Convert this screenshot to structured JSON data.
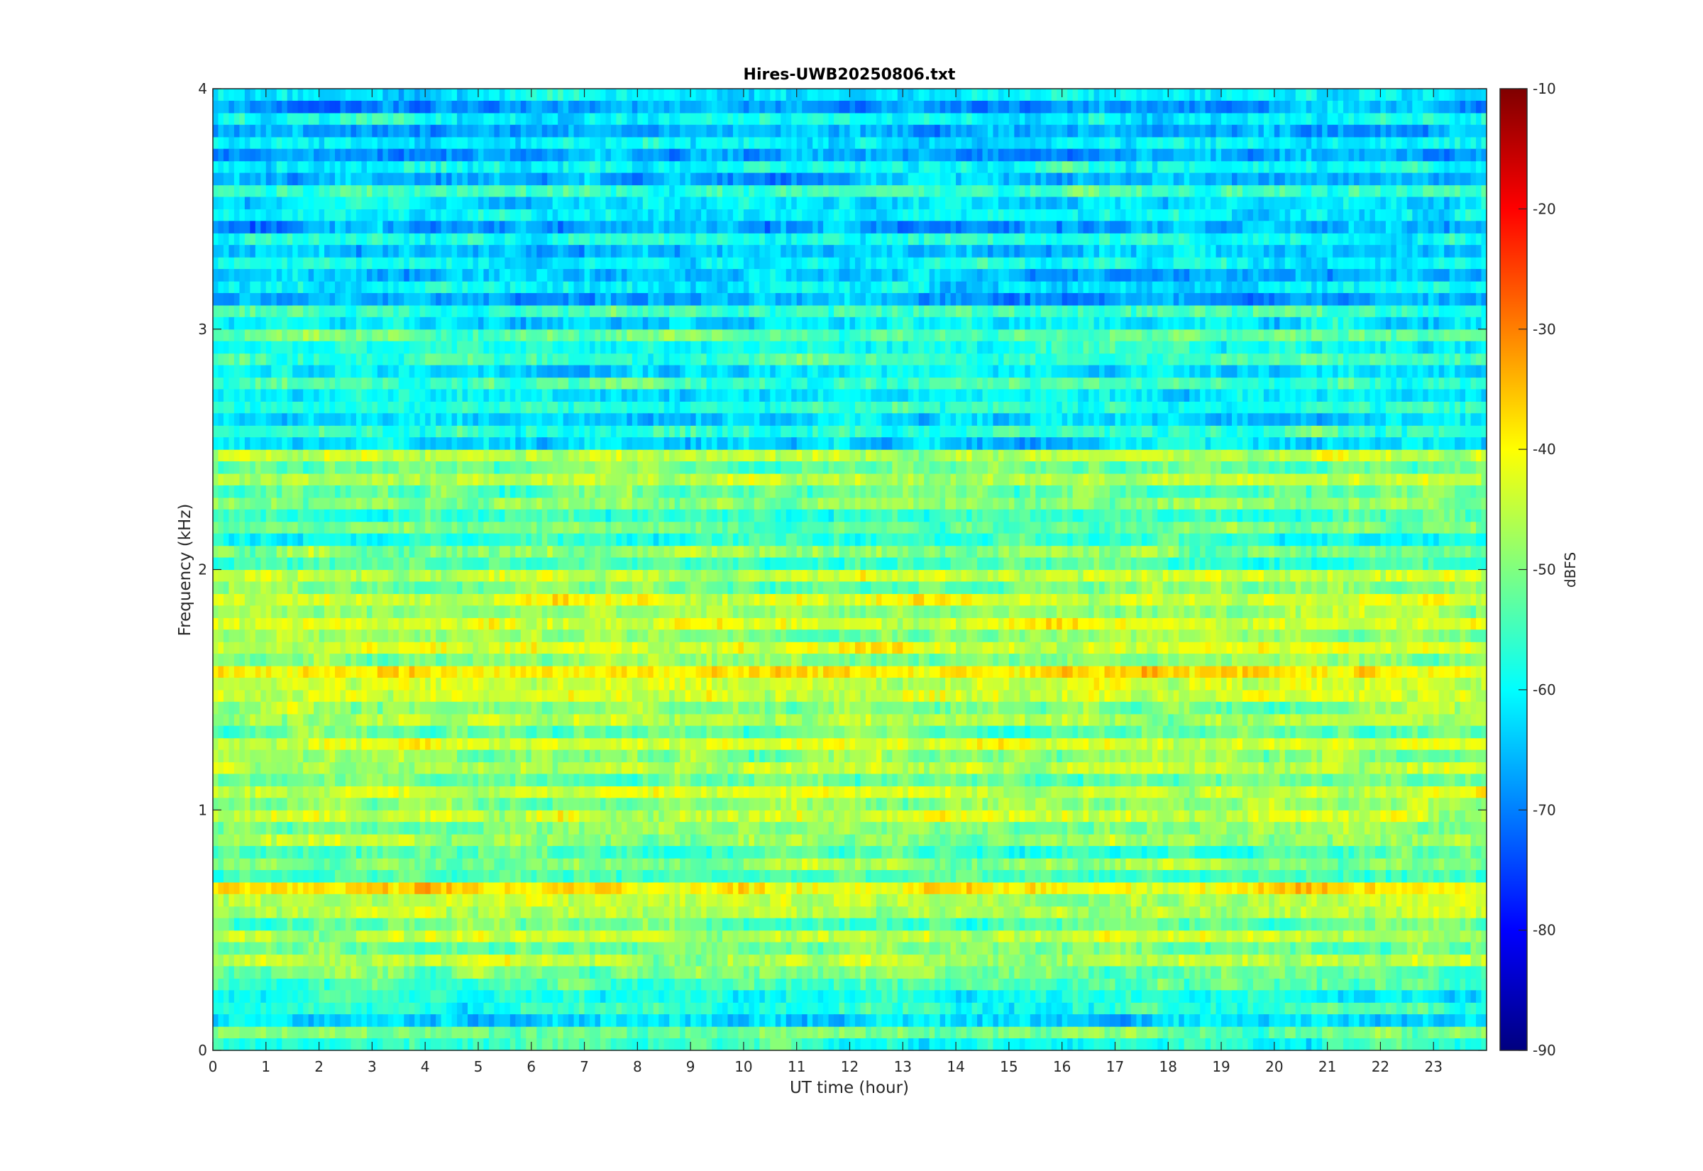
{
  "chart_data": {
    "type": "heatmap",
    "title": "Hires-UWB20250806.txt",
    "xlabel": "UT time (hour)",
    "ylabel": "Frequency (kHz)",
    "xlim": [
      0,
      24
    ],
    "ylim": [
      0,
      4
    ],
    "x_ticks": [
      "0",
      "1",
      "2",
      "3",
      "4",
      "5",
      "6",
      "7",
      "8",
      "9",
      "10",
      "11",
      "12",
      "13",
      "14",
      "15",
      "16",
      "17",
      "18",
      "19",
      "20",
      "21",
      "22",
      "23"
    ],
    "y_ticks": [
      "0",
      "1",
      "2",
      "3",
      "4"
    ],
    "colorbar": {
      "label": "dBFS",
      "range": [
        -90,
        -10
      ],
      "ticks": [
        "-10",
        "-20",
        "-30",
        "-40",
        "-50",
        "-60",
        "-70",
        "-80",
        "-90"
      ],
      "colormap": "jet"
    },
    "bands": [
      {
        "f": 0.05,
        "level": -52
      },
      {
        "f": 0.15,
        "level": -58
      },
      {
        "f": 0.25,
        "level": -55
      },
      {
        "f": 0.35,
        "level": -46
      },
      {
        "f": 0.45,
        "level": -46
      },
      {
        "f": 0.55,
        "level": -47
      },
      {
        "f": 0.65,
        "level": -40
      },
      {
        "f": 0.75,
        "level": -50
      },
      {
        "f": 0.85,
        "level": -49
      },
      {
        "f": 0.95,
        "level": -45
      },
      {
        "f": 1.05,
        "level": -44
      },
      {
        "f": 1.15,
        "level": -46
      },
      {
        "f": 1.25,
        "level": -44
      },
      {
        "f": 1.35,
        "level": -48
      },
      {
        "f": 1.45,
        "level": -44
      },
      {
        "f": 1.55,
        "level": -39
      },
      {
        "f": 1.65,
        "level": -44
      },
      {
        "f": 1.75,
        "level": -43
      },
      {
        "f": 1.85,
        "level": -44
      },
      {
        "f": 1.95,
        "level": -45
      },
      {
        "f": 2.05,
        "level": -50
      },
      {
        "f": 2.15,
        "level": -52
      },
      {
        "f": 2.25,
        "level": -50
      },
      {
        "f": 2.35,
        "level": -47
      },
      {
        "f": 2.45,
        "level": -47
      },
      {
        "f": 2.55,
        "level": -57
      },
      {
        "f": 2.65,
        "level": -58
      },
      {
        "f": 2.75,
        "level": -56
      },
      {
        "f": 2.85,
        "level": -56
      },
      {
        "f": 2.95,
        "level": -54
      },
      {
        "f": 3.05,
        "level": -56
      },
      {
        "f": 3.15,
        "level": -62
      },
      {
        "f": 3.25,
        "level": -60
      },
      {
        "f": 3.35,
        "level": -59
      },
      {
        "f": 3.45,
        "level": -62
      },
      {
        "f": 3.55,
        "level": -57
      },
      {
        "f": 3.65,
        "level": -60
      },
      {
        "f": 3.75,
        "level": -62
      },
      {
        "f": 3.85,
        "level": -61
      },
      {
        "f": 3.95,
        "level": -62
      }
    ]
  }
}
